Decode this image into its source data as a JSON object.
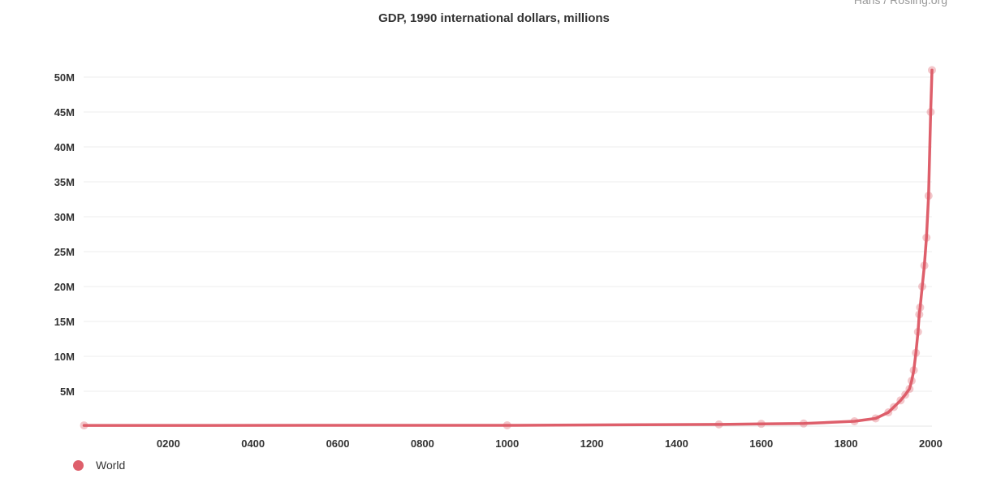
{
  "chart_data": {
    "type": "line",
    "title": "GDP, 1990 international dollars, millions",
    "source_text": "Hans / Rosling.org",
    "xlabel": "",
    "ylabel": "",
    "xlim": [
      0,
      2003
    ],
    "ylim": [
      0,
      50000000
    ],
    "y_ticks": [
      {
        "value": 5000000,
        "label": "5M"
      },
      {
        "value": 10000000,
        "label": "10M"
      },
      {
        "value": 15000000,
        "label": "15M"
      },
      {
        "value": 20000000,
        "label": "20M"
      },
      {
        "value": 25000000,
        "label": "25M"
      },
      {
        "value": 30000000,
        "label": "30M"
      },
      {
        "value": 35000000,
        "label": "35M"
      },
      {
        "value": 40000000,
        "label": "40M"
      },
      {
        "value": 45000000,
        "label": "45M"
      },
      {
        "value": 50000000,
        "label": "50M"
      }
    ],
    "x_ticks": [
      {
        "value": 200,
        "label": "0200"
      },
      {
        "value": 400,
        "label": "0400"
      },
      {
        "value": 600,
        "label": "0600"
      },
      {
        "value": 800,
        "label": "0800"
      },
      {
        "value": 1000,
        "label": "1000"
      },
      {
        "value": 1200,
        "label": "1200"
      },
      {
        "value": 1400,
        "label": "1400"
      },
      {
        "value": 1600,
        "label": "1600"
      },
      {
        "value": 1800,
        "label": "1800"
      },
      {
        "value": 2000,
        "label": "2000"
      }
    ],
    "grid": true,
    "legend_position": "bottom-left",
    "color": "#de5f6b",
    "series": [
      {
        "name": "World",
        "x": [
          1,
          1000,
          1500,
          1600,
          1700,
          1820,
          1870,
          1900,
          1913,
          1929,
          1940,
          1950,
          1955,
          1960,
          1965,
          1970,
          1973,
          1975,
          1980,
          1985,
          1990,
          1995,
          2000,
          2003
        ],
        "y": [
          105000,
          121000,
          248000,
          331000,
          371000,
          695000,
          1110000,
          1973000,
          2733000,
          3696000,
          4500000,
          5337000,
          6500000,
          8000000,
          10500000,
          13500000,
          16000000,
          17000000,
          20000000,
          23000000,
          27000000,
          33000000,
          45000000,
          51000000
        ]
      }
    ]
  }
}
